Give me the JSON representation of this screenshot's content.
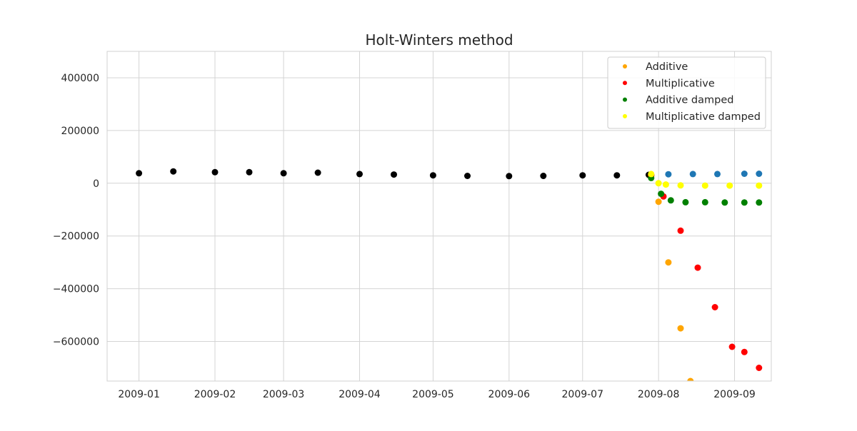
{
  "chart_data": {
    "type": "scatter",
    "title": "Holt-Winters method",
    "xlabel": "",
    "ylabel": "",
    "x_ticks": [
      "2009-01",
      "2009-02",
      "2009-03",
      "2009-04",
      "2009-05",
      "2009-06",
      "2009-07",
      "2009-08",
      "2009-09"
    ],
    "y_ticks": [
      400000,
      200000,
      0,
      -200000,
      -400000,
      -600000
    ],
    "y_tick_labels": [
      "400000",
      "200000",
      "0",
      "−200000",
      "−400000",
      "−600000"
    ],
    "xlim": [
      "2008-12-19",
      "2009-09-16"
    ],
    "ylim": [
      -750000,
      500000
    ],
    "grid": true,
    "legend_position": "top-right",
    "legend": [
      {
        "name": "Additive",
        "color": "#ffa500"
      },
      {
        "name": "Multiplicative",
        "color": "#ff0000"
      },
      {
        "name": "Additive damped",
        "color": "#008000"
      },
      {
        "name": "Multiplicative damped",
        "color": "#ffff00"
      }
    ],
    "series": [
      {
        "color": "#000000",
        "x": [
          "2009-01-01",
          "2009-01-15",
          "2009-02-01",
          "2009-02-15",
          "2009-03-01",
          "2009-03-15",
          "2009-04-01",
          "2009-04-15",
          "2009-05-01",
          "2009-05-15",
          "2009-06-01",
          "2009-06-15",
          "2009-07-01",
          "2009-07-15",
          "2009-07-28"
        ],
        "y": [
          38000,
          45000,
          42000,
          42000,
          38000,
          40000,
          35000,
          33000,
          30000,
          28000,
          27000,
          28000,
          30000,
          30000,
          32000
        ]
      },
      {
        "color": "#1f77b4",
        "x": [
          "2009-07-29",
          "2009-08-05",
          "2009-08-15",
          "2009-08-25",
          "2009-09-05",
          "2009-09-11"
        ],
        "y": [
          32000,
          34000,
          35000,
          35000,
          36000,
          36000
        ]
      },
      {
        "name": "Additive",
        "color": "#ffa500",
        "x": [
          "2009-07-29",
          "2009-08-01",
          "2009-08-05",
          "2009-08-10",
          "2009-08-14"
        ],
        "y": [
          30000,
          -70000,
          -300000,
          -550000,
          -750000
        ]
      },
      {
        "name": "Multiplicative",
        "color": "#ff0000",
        "x": [
          "2009-07-29",
          "2009-08-03",
          "2009-08-10",
          "2009-08-17",
          "2009-08-24",
          "2009-08-31",
          "2009-09-05",
          "2009-09-11"
        ],
        "y": [
          30000,
          -50000,
          -180000,
          -320000,
          -470000,
          -620000,
          -640000,
          -700000
        ]
      },
      {
        "name": "Additive damped",
        "color": "#008000",
        "x": [
          "2009-07-29",
          "2009-08-02",
          "2009-08-06",
          "2009-08-12",
          "2009-08-20",
          "2009-08-28",
          "2009-09-05",
          "2009-09-11"
        ],
        "y": [
          20000,
          -40000,
          -65000,
          -72000,
          -72000,
          -73000,
          -73000,
          -73000
        ]
      },
      {
        "name": "Multiplicative damped",
        "color": "#ffff00",
        "x": [
          "2009-07-29",
          "2009-08-01",
          "2009-08-04",
          "2009-08-10",
          "2009-08-20",
          "2009-08-30",
          "2009-09-11"
        ],
        "y": [
          35000,
          0,
          -5000,
          -8000,
          -9000,
          -9000,
          -9000
        ]
      }
    ]
  }
}
